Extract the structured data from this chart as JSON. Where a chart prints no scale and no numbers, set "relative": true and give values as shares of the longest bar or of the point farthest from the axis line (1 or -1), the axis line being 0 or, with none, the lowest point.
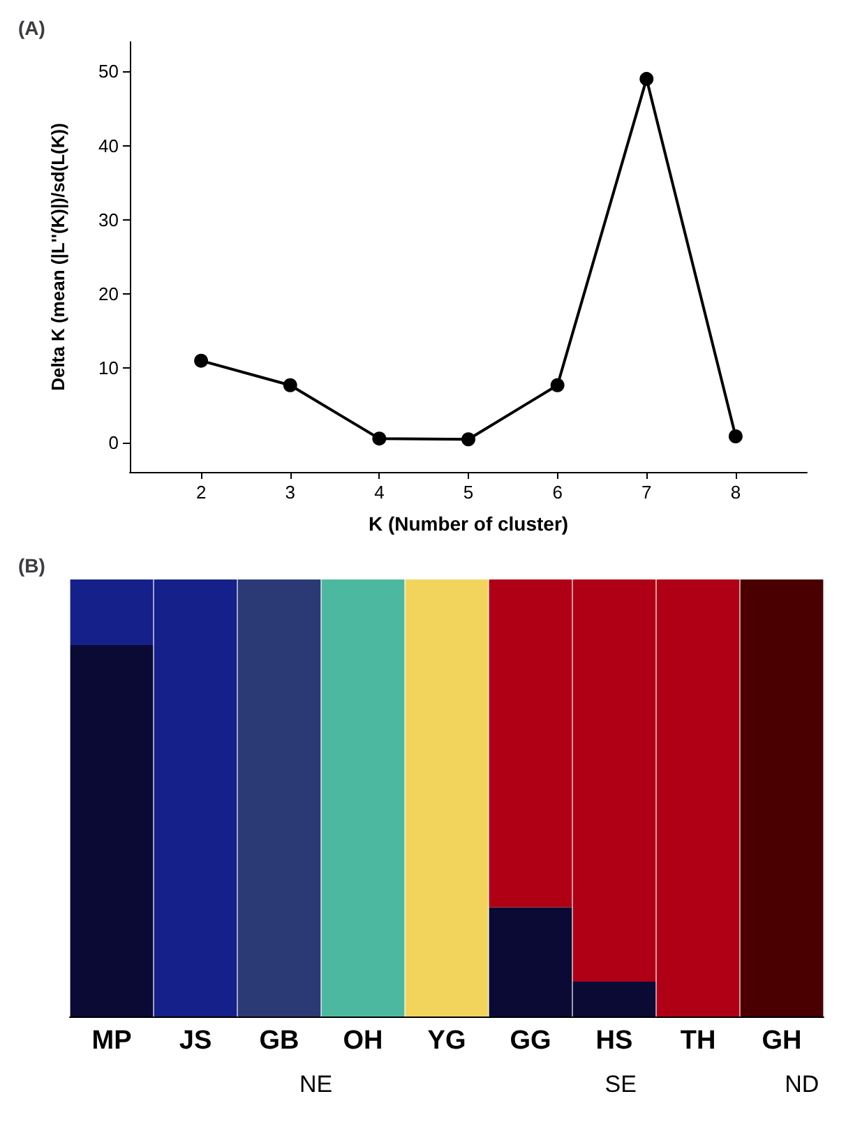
{
  "chart_data": [
    {
      "type": "line",
      "title": "(A)",
      "xlabel": "K (Number of cluster)",
      "ylabel": "Delta K (mean (|L''(K)|)/sd(L(K))",
      "x": [
        2,
        3,
        4,
        5,
        6,
        7,
        8
      ],
      "values": [
        11,
        7.7,
        0.5,
        0.4,
        7.7,
        49,
        0.8
      ],
      "color": "#000000",
      "xlim": [
        1.2,
        8.8
      ],
      "ylim": [
        -4,
        54
      ],
      "xticks": [
        2,
        3,
        4,
        5,
        6,
        7,
        8
      ],
      "yticks": [
        0,
        10,
        20,
        30,
        40,
        50
      ],
      "marker": "circle",
      "line_style": "solid"
    },
    {
      "type": "bar",
      "title": "(B)",
      "stacked": true,
      "relative": true,
      "categories": [
        "MP",
        "JS",
        "GB",
        "OH",
        "YG",
        "GG",
        "HS",
        "TH",
        "GH"
      ],
      "series": [
        {
          "color": "#0a0a35",
          "values": [
            0.85,
            0,
            0,
            0,
            0,
            0.25,
            0.08,
            0,
            0
          ]
        },
        {
          "color": "#16208a",
          "values": [
            0.15,
            1,
            0,
            0,
            0,
            0,
            0,
            0,
            0
          ]
        },
        {
          "color": "#2b3a75",
          "values": [
            0,
            0,
            1,
            0,
            0,
            0,
            0,
            0,
            0
          ]
        },
        {
          "color": "#4db8a0",
          "values": [
            0,
            0,
            0,
            1,
            0,
            0,
            0,
            0,
            0
          ]
        },
        {
          "color": "#f2d45c",
          "values": [
            0,
            0,
            0,
            0,
            1,
            0,
            0,
            0,
            0
          ]
        },
        {
          "color": "#b00015",
          "values": [
            0,
            0,
            0,
            0,
            0,
            0.75,
            0.92,
            1,
            0
          ]
        },
        {
          "color": "#4a0000",
          "values": [
            0,
            0,
            0,
            0,
            0,
            0,
            0,
            0,
            1
          ]
        }
      ],
      "annotations": [
        "NE",
        "SE",
        "ND"
      ]
    }
  ]
}
